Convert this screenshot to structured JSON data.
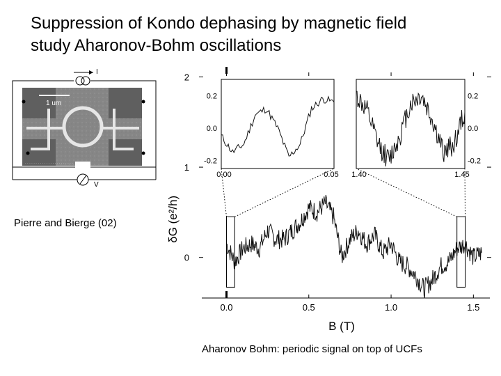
{
  "slide": {
    "title_line1": "Suppression of Kondo dephasing by magnetic field",
    "title_line2": "study Aharonov-Bohm oscillations",
    "credit": "Pierre and Bierge (02)",
    "bottom_caption": "Aharonov Bohm: periodic signal on top of UCFs"
  },
  "schematic": {
    "scale_bar": "1 um",
    "current_label": "I",
    "voltage_label": "V",
    "colors": {
      "sem_bg": "#8a8a8a",
      "ring": "#e6e6e6"
    }
  },
  "chart_data": [
    {
      "type": "line",
      "title": "",
      "xlabel": "B (T)",
      "ylabel": "δG (e²/h)",
      "xlim": [
        -0.15,
        1.6
      ],
      "ylim": [
        -0.45,
        2.05
      ],
      "x_ticks": [
        "0.0",
        "0.5",
        "1.0",
        "1.5"
      ],
      "y_ticks": [
        "0",
        "1",
        "2"
      ],
      "series": [
        {
          "name": "",
          "x": [
            0.0,
            0.05,
            0.1,
            0.15,
            0.2,
            0.25,
            0.3,
            0.35,
            0.4,
            0.45,
            0.5,
            0.55,
            0.6,
            0.65,
            0.7,
            0.75,
            0.8,
            0.85,
            0.9,
            0.95,
            1.0,
            1.05,
            1.1,
            1.15,
            1.2,
            1.25,
            1.3,
            1.35,
            1.4,
            1.45,
            1.5,
            1.55
          ],
          "y": [
            0.15,
            -0.05,
            0.1,
            0.15,
            0.1,
            0.3,
            0.2,
            0.2,
            0.3,
            0.4,
            0.55,
            0.5,
            0.6,
            0.45,
            0.0,
            0.2,
            0.3,
            0.15,
            0.25,
            0.05,
            0.15,
            -0.05,
            -0.1,
            -0.2,
            -0.35,
            -0.25,
            -0.1,
            -0.05,
            0.1,
            0.15,
            0.0,
            0.05
          ]
        }
      ],
      "highlight_boxes_x": [
        [
          0.0,
          0.05
        ],
        [
          1.4,
          1.45
        ]
      ]
    },
    {
      "type": "line",
      "xlim": [
        0.0,
        0.05
      ],
      "ylim": [
        -0.25,
        0.3
      ],
      "x_ticks": [
        "0.00",
        "0.05"
      ],
      "y_ticks": [
        "-0.2",
        "0.0",
        "0.2"
      ],
      "series": [
        {
          "name": "",
          "x": [
            0.0,
            0.005,
            0.01,
            0.015,
            0.02,
            0.025,
            0.03,
            0.035,
            0.04,
            0.045,
            0.05
          ],
          "y": [
            -0.05,
            -0.15,
            -0.1,
            0.08,
            0.12,
            0.0,
            -0.18,
            -0.1,
            0.12,
            0.18,
            0.16
          ]
        }
      ]
    },
    {
      "type": "line",
      "xlim": [
        1.4,
        1.45
      ],
      "ylim": [
        -0.25,
        0.3
      ],
      "x_ticks": [
        "1.40",
        "1.45"
      ],
      "y_ticks": [
        "-0.2",
        "0.0",
        "0.2"
      ],
      "series": [
        {
          "name": "",
          "x": [
            1.4,
            1.405,
            1.41,
            1.415,
            1.42,
            1.425,
            1.43,
            1.435,
            1.44,
            1.445,
            1.45
          ],
          "y": [
            0.2,
            0.1,
            -0.1,
            -0.2,
            -0.05,
            0.15,
            0.2,
            0.05,
            -0.15,
            -0.1,
            0.1
          ]
        }
      ]
    }
  ]
}
